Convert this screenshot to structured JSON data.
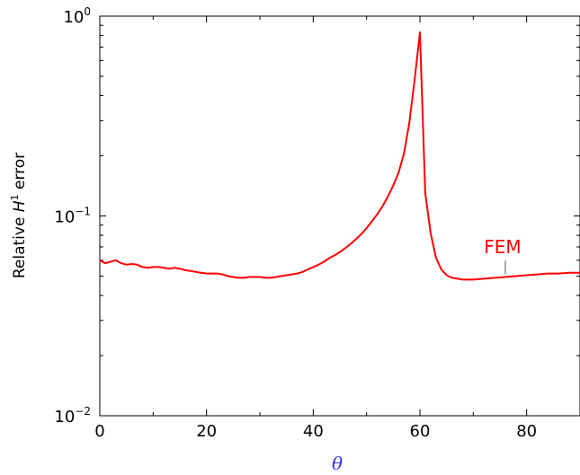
{
  "chart_data": {
    "type": "line",
    "xlabel": "θ",
    "ylabel": {
      "prefix": "Relative ",
      "var": "H",
      "sup": "1",
      "suffix": " error"
    },
    "xlim": [
      0,
      90
    ],
    "ylim": [
      0.01,
      1
    ],
    "yscale": "log",
    "grid": false,
    "xticks": [
      0,
      20,
      40,
      60,
      80
    ],
    "yticks": [
      {
        "value": 1,
        "base": "10",
        "exp": "0"
      },
      {
        "value": 0.1,
        "base": "10",
        "exp": "−1"
      },
      {
        "value": 0.01,
        "base": "10",
        "exp": "−2"
      }
    ],
    "series": [
      {
        "name": "FEM",
        "color": "#ff0000",
        "x": [
          0,
          1,
          2,
          3,
          4,
          5,
          6,
          7,
          8,
          9,
          10,
          11,
          12,
          13,
          14,
          15,
          16,
          17,
          18,
          19,
          20,
          21,
          22,
          23,
          24,
          25,
          26,
          27,
          28,
          29,
          30,
          31,
          32,
          33,
          34,
          35,
          36,
          37,
          38,
          39,
          40,
          41,
          42,
          43,
          44,
          45,
          46,
          47,
          48,
          49,
          50,
          51,
          52,
          53,
          54,
          55,
          56,
          57,
          58,
          59,
          60,
          61,
          62,
          63,
          64,
          65,
          66,
          67,
          68,
          69,
          70,
          72,
          74,
          76,
          78,
          80,
          82,
          84,
          86,
          88,
          90
        ],
        "values": [
          0.06,
          0.058,
          0.059,
          0.06,
          0.058,
          0.057,
          0.0575,
          0.057,
          0.0555,
          0.055,
          0.0555,
          0.0555,
          0.055,
          0.0545,
          0.055,
          0.0545,
          0.0535,
          0.053,
          0.0525,
          0.052,
          0.0515,
          0.0515,
          0.0515,
          0.051,
          0.05,
          0.0495,
          0.049,
          0.049,
          0.0495,
          0.0495,
          0.0495,
          0.049,
          0.049,
          0.0495,
          0.05,
          0.0505,
          0.051,
          0.0515,
          0.0525,
          0.054,
          0.0555,
          0.057,
          0.059,
          0.0615,
          0.0635,
          0.066,
          0.069,
          0.0725,
          0.0765,
          0.081,
          0.087,
          0.094,
          0.102,
          0.112,
          0.125,
          0.142,
          0.165,
          0.205,
          0.29,
          0.48,
          0.83,
          0.13,
          0.082,
          0.062,
          0.054,
          0.0505,
          0.049,
          0.0485,
          0.048,
          0.048,
          0.048,
          0.0485,
          0.049,
          0.0495,
          0.05,
          0.0505,
          0.051,
          0.0515,
          0.0515,
          0.052,
          0.052
        ]
      }
    ],
    "annotations": [
      {
        "text": "FEM",
        "x": 76,
        "y": 0.065
      }
    ]
  }
}
